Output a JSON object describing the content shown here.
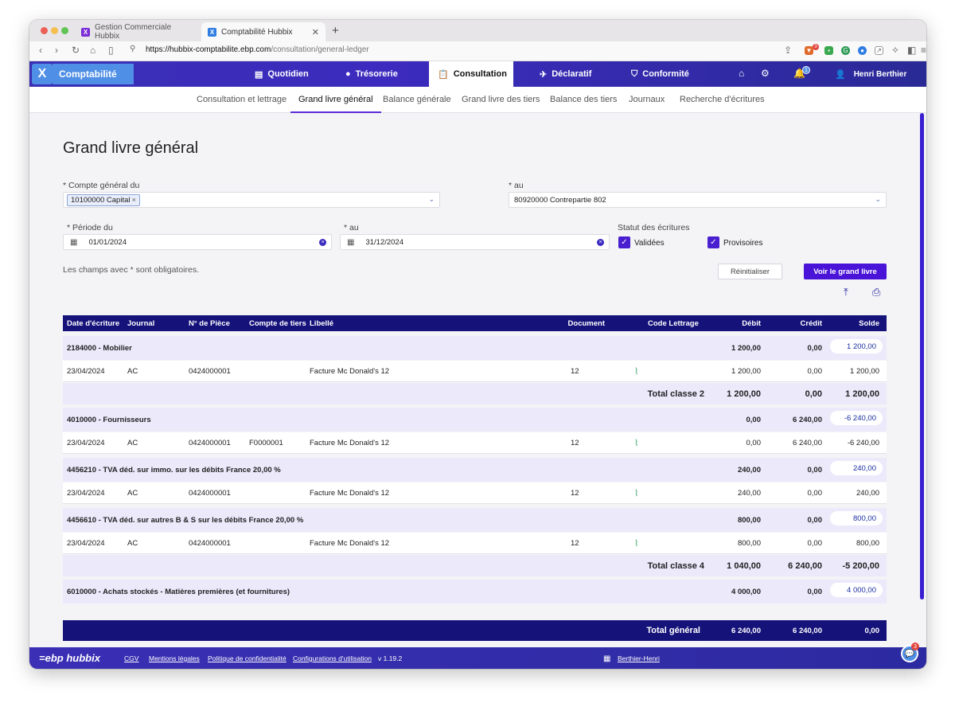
{
  "browser": {
    "tabs": [
      {
        "label": "Gestion Commerciale Hubbix",
        "favicon": "hubbix-x-icon"
      },
      {
        "label": "Comptabilité Hubbix",
        "favicon": "hubbix-x-icon"
      }
    ],
    "url_domain": "https://hubbix-comptabilite.ebp.com",
    "url_path": "/consultation/general-ledger",
    "extension_badge": "3"
  },
  "app": {
    "logo_letter": "X",
    "module": "Comptabilité",
    "nav": [
      {
        "label": "Quotidien",
        "icon": "calendar-grid-icon"
      },
      {
        "label": "Trésorerie",
        "icon": "piggy-bank-icon"
      },
      {
        "label": "Consultation",
        "icon": "clipboard-search-icon",
        "active": true
      },
      {
        "label": "Déclaratif",
        "icon": "send-icon"
      },
      {
        "label": "Conformité",
        "icon": "shield-check-icon"
      }
    ],
    "notification_count": "1",
    "user": "Henri Berthier"
  },
  "subnav": [
    {
      "label": "Consultation et lettrage"
    },
    {
      "label": "Grand livre général",
      "active": true
    },
    {
      "label": "Balance générale"
    },
    {
      "label": "Grand livre des tiers"
    },
    {
      "label": "Balance des tiers"
    },
    {
      "label": "Journaux"
    },
    {
      "label": "Recherche d'écritures"
    }
  ],
  "page": {
    "title": "Grand livre général",
    "compte_du_label": "* Compte général du",
    "compte_du_chip": "10100000 Capital",
    "compte_au_label": "* au",
    "compte_au_value": "80920000 Contrepartie 802",
    "periode_du_label": "* Période du",
    "periode_du_value": "01/01/2024",
    "periode_au_label": "* au",
    "periode_au_value": "31/12/2024",
    "statut_label": "Statut des écritures",
    "statut_validees": "Validées",
    "statut_provisoires": "Provisoires",
    "hint": "Les champs avec * sont obligatoires.",
    "reset_label": "Réinitialiser",
    "submit_label": "Voir le grand livre"
  },
  "table": {
    "headers": {
      "date": "Date d'écriture",
      "journal": "Journal",
      "piece": "N° de Pièce",
      "tiers": "Compte de tiers",
      "libelle": "Libellé",
      "document": "Document",
      "lettrage": "Code Lettrage",
      "debit": "Débit",
      "credit": "Crédit",
      "solde": "Solde"
    },
    "g1": {
      "name": "2184000 - Mobilier",
      "debit": "1 200,00",
      "credit": "0,00",
      "solde": "1 200,00"
    },
    "l1": {
      "date": "23/04/2024",
      "journal": "AC",
      "piece": "0424000001",
      "tiers": "",
      "libelle": "Facture Mc Donald's 12",
      "document": "12",
      "debit": "1 200,00",
      "credit": "0,00",
      "solde": "1 200,00"
    },
    "t1": {
      "label": "Total classe 2",
      "debit": "1 200,00",
      "credit": "0,00",
      "solde": "1 200,00"
    },
    "g2": {
      "name": "4010000 - Fournisseurs",
      "debit": "0,00",
      "credit": "6 240,00",
      "solde": "-6 240,00"
    },
    "l2": {
      "date": "23/04/2024",
      "journal": "AC",
      "piece": "0424000001",
      "tiers": "F0000001",
      "libelle": "Facture Mc Donald's 12",
      "document": "12",
      "debit": "0,00",
      "credit": "6 240,00",
      "solde": "-6 240,00"
    },
    "g3": {
      "name": "4456210 - TVA déd. sur immo. sur les débits France 20,00 %",
      "debit": "240,00",
      "credit": "0,00",
      "solde": "240,00"
    },
    "l3": {
      "date": "23/04/2024",
      "journal": "AC",
      "piece": "0424000001",
      "tiers": "",
      "libelle": "Facture Mc Donald's 12",
      "document": "12",
      "debit": "240,00",
      "credit": "0,00",
      "solde": "240,00"
    },
    "g4": {
      "name": "4456610 - TVA déd. sur autres B & S sur les débits France 20,00 %",
      "debit": "800,00",
      "credit": "0,00",
      "solde": "800,00"
    },
    "l4": {
      "date": "23/04/2024",
      "journal": "AC",
      "piece": "0424000001",
      "tiers": "",
      "libelle": "Facture Mc Donald's 12",
      "document": "12",
      "debit": "800,00",
      "credit": "0,00",
      "solde": "800,00"
    },
    "t2": {
      "label": "Total classe 4",
      "debit": "1 040,00",
      "credit": "6 240,00",
      "solde": "-5 200,00"
    },
    "g5": {
      "name": "6010000 - Achats stockés - Matières premières (et fournitures)",
      "debit": "4 000,00",
      "credit": "0,00",
      "solde": "4 000,00"
    },
    "grand": {
      "label": "Total général",
      "debit": "6 240,00",
      "credit": "6 240,00",
      "solde": "0,00"
    }
  },
  "footer": {
    "brand": "=ebp hubbix",
    "links": [
      "CGV",
      "Mentions légales",
      "Politique de confidentialité",
      "Configurations d'utilisation"
    ],
    "version": "v 1.19.2",
    "company": "Berthier-Henri",
    "chat_badge": "3"
  }
}
